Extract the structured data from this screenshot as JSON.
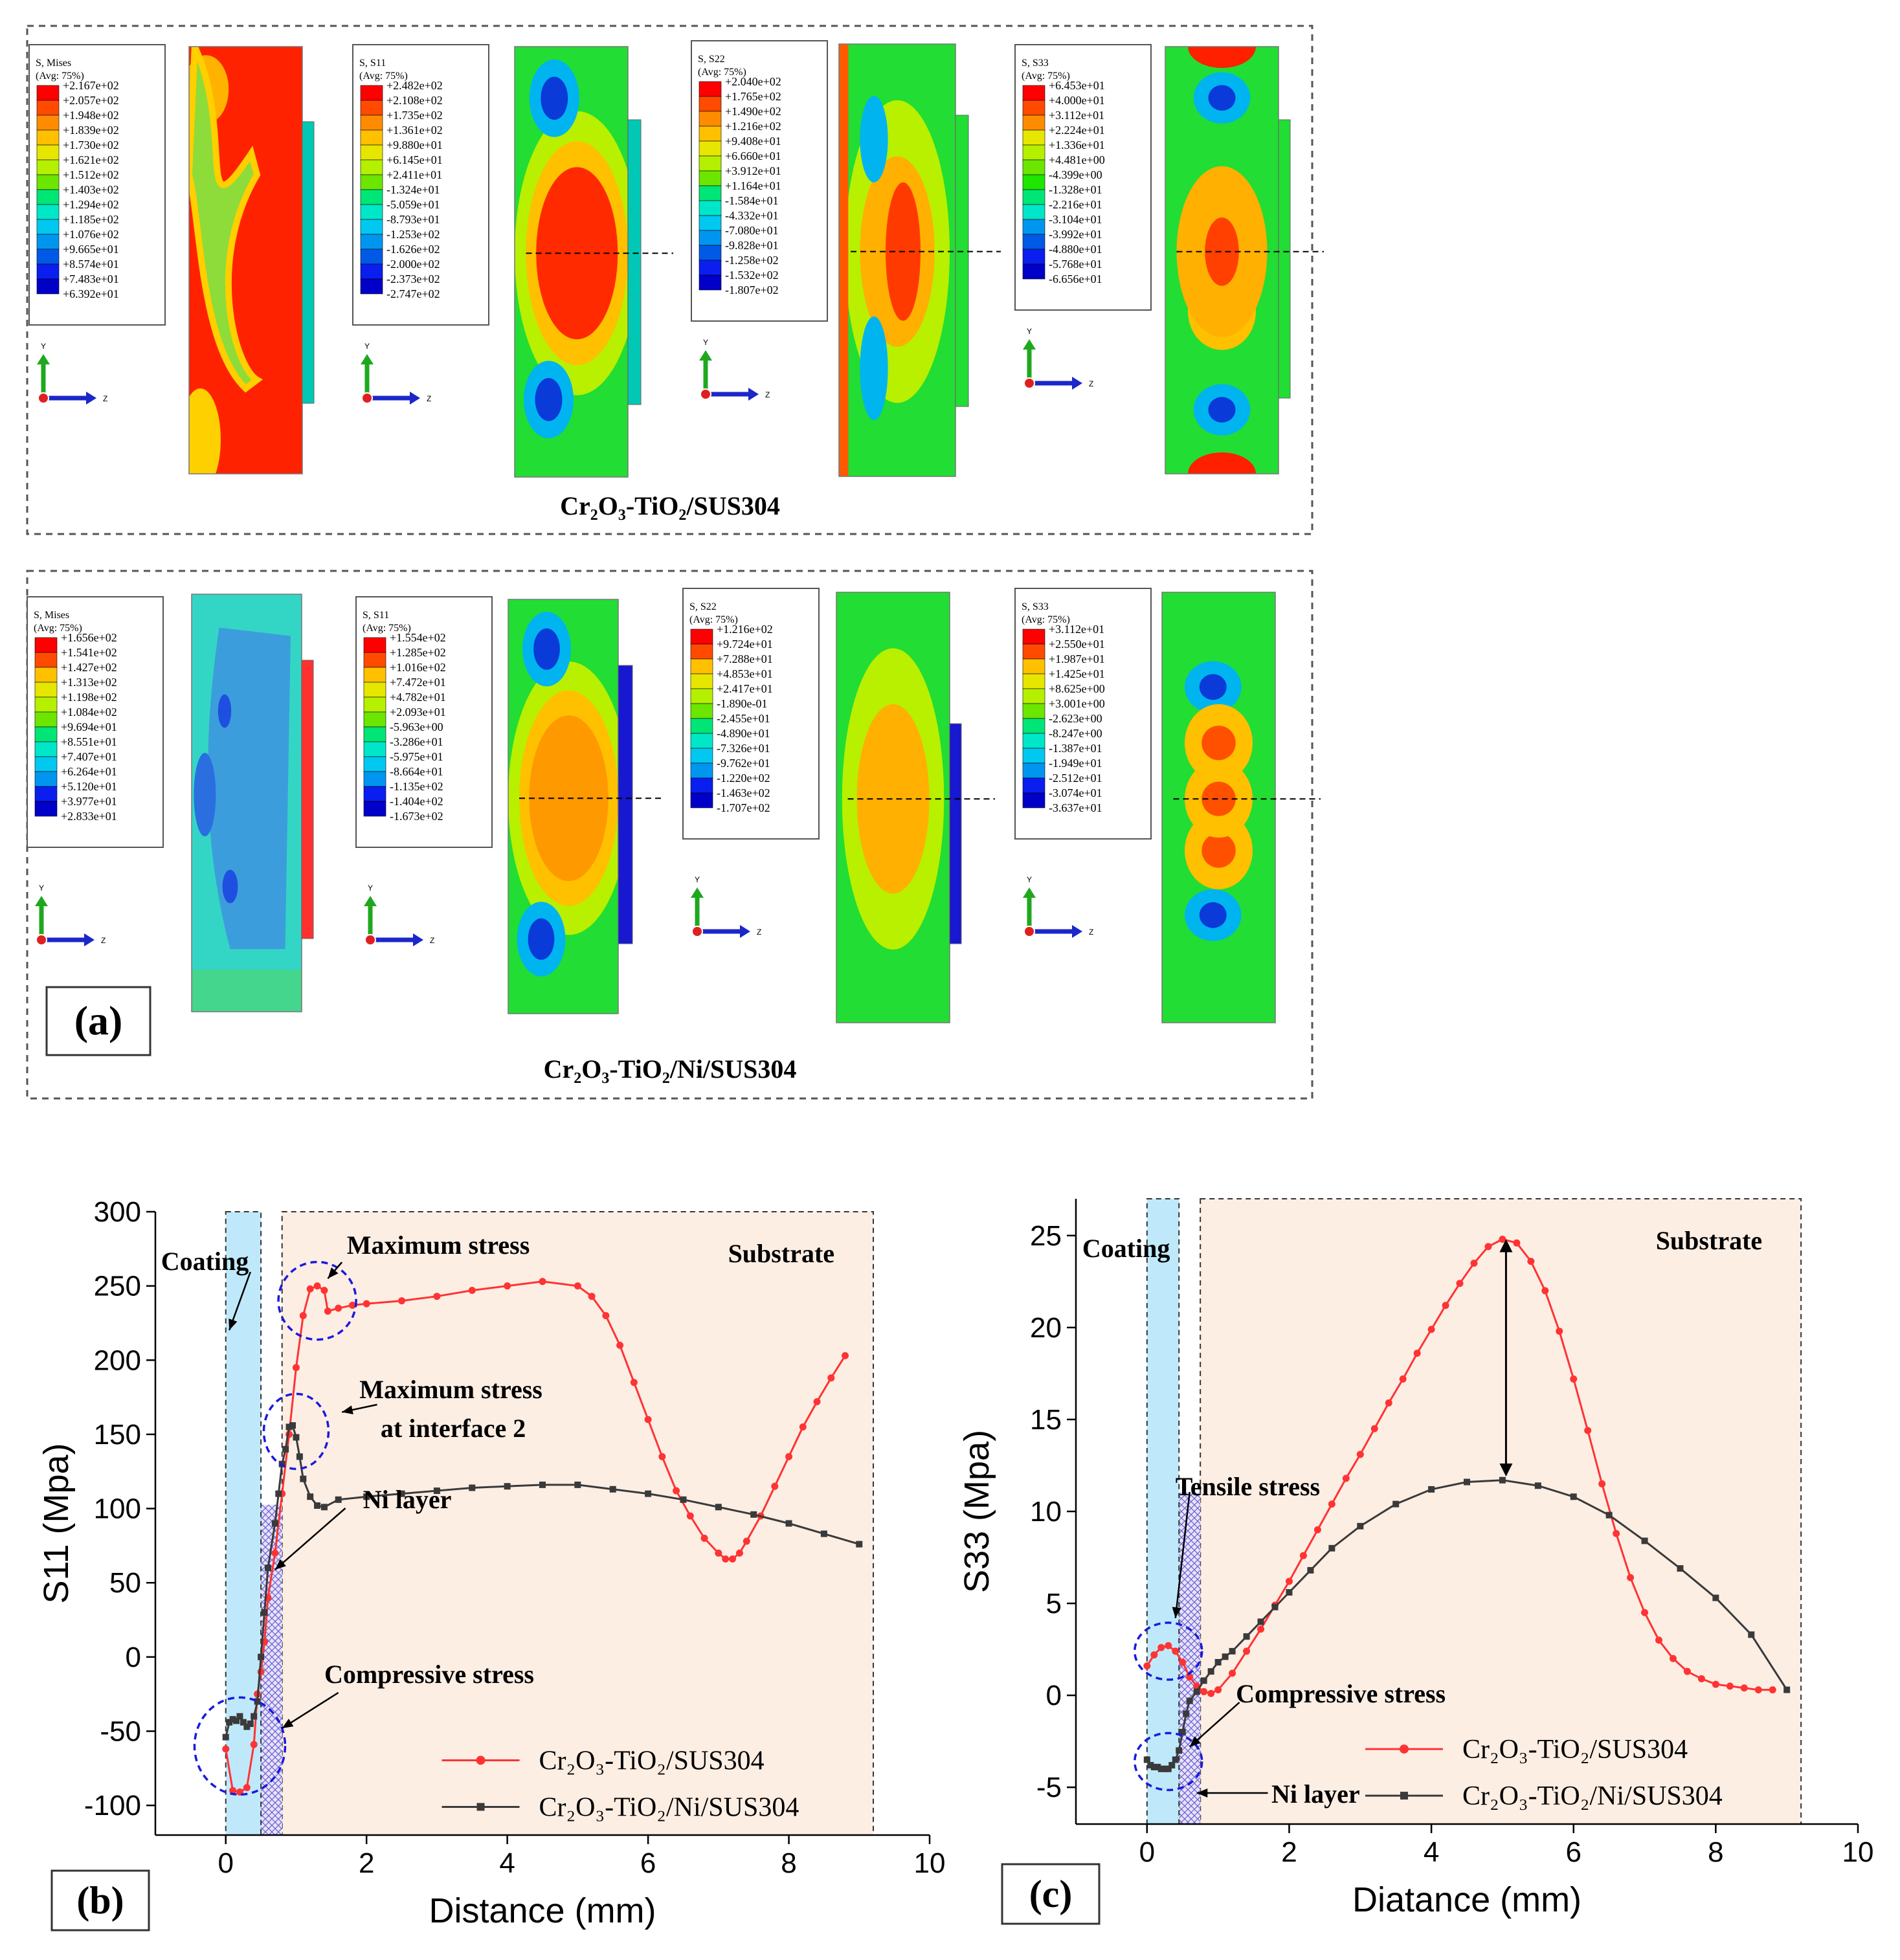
{
  "figure": {
    "panel_a": {
      "label": "(a)",
      "rows": [
        {
          "caption": "Cr₂O₃-TiO₂/SUS304",
          "plots": [
            {
              "title": "S, Mises",
              "avg": "(Avg: 75%)",
              "levels": [
                "+2.167e+02",
                "+2.057e+02",
                "+1.948e+02",
                "+1.839e+02",
                "+1.730e+02",
                "+1.621e+02",
                "+1.512e+02",
                "+1.403e+02",
                "+1.294e+02",
                "+1.185e+02",
                "+1.076e+02",
                "+9.665e+01",
                "+8.574e+01",
                "+7.483e+01",
                "+6.392e+01"
              ]
            },
            {
              "title": "S, S11",
              "avg": "(Avg: 75%)",
              "levels": [
                "+2.482e+02",
                "+2.108e+02",
                "+1.735e+02",
                "+1.361e+02",
                "+9.880e+01",
                "+6.145e+01",
                "+2.411e+01",
                "-1.324e+01",
                "-5.059e+01",
                "-8.793e+01",
                "-1.253e+02",
                "-1.626e+02",
                "-2.000e+02",
                "-2.373e+02",
                "-2.747e+02"
              ]
            },
            {
              "title": "S, S22",
              "avg": "(Avg: 75%)",
              "levels": [
                "+2.040e+02",
                "+1.765e+02",
                "+1.490e+02",
                "+1.216e+02",
                "+9.408e+01",
                "+6.660e+01",
                "+3.912e+01",
                "+1.164e+01",
                "-1.584e+01",
                "-4.332e+01",
                "-7.080e+01",
                "-9.828e+01",
                "-1.258e+02",
                "-1.532e+02",
                "-1.807e+02"
              ]
            },
            {
              "title": "S, S33",
              "avg": "(Avg: 75%)",
              "levels": [
                "+6.453e+01",
                "+4.000e+01",
                "+3.112e+01",
                "+2.224e+01",
                "+1.336e+01",
                "+4.481e+00",
                "-4.399e+00",
                "-1.328e+01",
                "-2.216e+01",
                "-3.104e+01",
                "-3.992e+01",
                "-4.880e+01",
                "-5.768e+01",
                "-6.656e+01"
              ]
            }
          ]
        },
        {
          "caption": "Cr₂O₃-TiO₂/Ni/SUS304",
          "plots": [
            {
              "title": "S, Mises",
              "avg": "(Avg: 75%)",
              "levels": [
                "+1.656e+02",
                "+1.541e+02",
                "+1.427e+02",
                "+1.313e+02",
                "+1.198e+02",
                "+1.084e+02",
                "+9.694e+01",
                "+8.551e+01",
                "+7.407e+01",
                "+6.264e+01",
                "+5.120e+01",
                "+3.977e+01",
                "+2.833e+01"
              ]
            },
            {
              "title": "S, S11",
              "avg": "(Avg: 75%)",
              "levels": [
                "+1.554e+02",
                "+1.285e+02",
                "+1.016e+02",
                "+7.472e+01",
                "+4.782e+01",
                "+2.093e+01",
                "-5.963e+00",
                "-3.286e+01",
                "-5.975e+01",
                "-8.664e+01",
                "-1.135e+02",
                "-1.404e+02",
                "-1.673e+02"
              ]
            },
            {
              "title": "S, S22",
              "avg": "(Avg: 75%)",
              "levels": [
                "+1.216e+02",
                "+9.724e+01",
                "+7.288e+01",
                "+4.853e+01",
                "+2.417e+01",
                "-1.890e-01",
                "-2.455e+01",
                "-4.890e+01",
                "-7.326e+01",
                "-9.762e+01",
                "-1.220e+02",
                "-1.463e+02",
                "-1.707e+02"
              ]
            },
            {
              "title": "S, S33",
              "avg": "(Avg: 75%)",
              "levels": [
                "+3.112e+01",
                "+2.550e+01",
                "+1.987e+01",
                "+1.425e+01",
                "+8.625e+00",
                "+3.001e+00",
                "-2.623e+00",
                "-8.247e+00",
                "-1.387e+01",
                "-1.949e+01",
                "-2.512e+01",
                "-3.074e+01",
                "-3.637e+01"
              ]
            }
          ]
        }
      ],
      "axis_y": "Y",
      "axis_z": "Z"
    },
    "colors": {
      "red": "#ff3333",
      "black": "#3a3a3a",
      "substrate_fill": "#fdeee4",
      "coating_fill": "#bfe9fb",
      "annotation": "#1a1adf"
    }
  },
  "chart_data": [
    {
      "id": "b",
      "type": "line",
      "panel_label": "(b)",
      "xlabel": "Distance (mm)",
      "ylabel": "S11 (Mpa)",
      "xlim": [
        -1,
        10
      ],
      "ylim": [
        -120,
        300
      ],
      "xticks": [
        0,
        2,
        4,
        6,
        8,
        10
      ],
      "yticks": [
        -100,
        -50,
        0,
        50,
        100,
        150,
        200,
        250,
        300
      ],
      "regions": {
        "coating": [
          0,
          0.5
        ],
        "ni_layer": [
          0.5,
          0.8
        ],
        "substrate_end": 9.2
      },
      "region_labels": {
        "coating": "Coating",
        "substrate": "Substrate"
      },
      "annotations": [
        "Maximum stress",
        "Maximum stress",
        "at interface 2",
        "Ni layer",
        "Compressive stress"
      ],
      "series": [
        {
          "name": "Cr₂O₃-TiO₂/SUS304",
          "color": "#ff3333",
          "marker": "circle",
          "points": [
            [
              0,
              -62
            ],
            [
              0.1,
              -90
            ],
            [
              0.2,
              -91
            ],
            [
              0.3,
              -88
            ],
            [
              0.4,
              -59
            ],
            [
              0.45,
              -25
            ],
            [
              0.5,
              -10
            ],
            [
              0.55,
              10
            ],
            [
              0.6,
              40
            ],
            [
              0.7,
              70
            ],
            [
              0.8,
              110
            ],
            [
              0.9,
              150
            ],
            [
              1.0,
              195
            ],
            [
              1.1,
              230
            ],
            [
              1.2,
              248
            ],
            [
              1.3,
              250
            ],
            [
              1.4,
              247
            ],
            [
              1.45,
              233
            ],
            [
              1.6,
              235
            ],
            [
              1.8,
              237
            ],
            [
              2.0,
              238
            ],
            [
              2.5,
              240
            ],
            [
              3.0,
              243
            ],
            [
              3.5,
              247
            ],
            [
              4.0,
              250
            ],
            [
              4.5,
              253
            ],
            [
              5.0,
              250
            ],
            [
              5.2,
              243
            ],
            [
              5.4,
              230
            ],
            [
              5.6,
              210
            ],
            [
              5.8,
              185
            ],
            [
              6.0,
              160
            ],
            [
              6.2,
              135
            ],
            [
              6.4,
              112
            ],
            [
              6.6,
              95
            ],
            [
              6.8,
              80
            ],
            [
              7.0,
              70
            ],
            [
              7.1,
              66
            ],
            [
              7.2,
              66
            ],
            [
              7.3,
              70
            ],
            [
              7.4,
              78
            ],
            [
              7.6,
              95
            ],
            [
              7.8,
              115
            ],
            [
              8.0,
              135
            ],
            [
              8.2,
              155
            ],
            [
              8.4,
              172
            ],
            [
              8.6,
              188
            ],
            [
              8.8,
              203
            ]
          ]
        },
        {
          "name": "Cr₂O₃-TiO₂/Ni/SUS304",
          "color": "#3a3a3a",
          "marker": "square",
          "points": [
            [
              0,
              -54
            ],
            [
              0.05,
              -44
            ],
            [
              0.1,
              -42
            ],
            [
              0.15,
              -43
            ],
            [
              0.2,
              -40
            ],
            [
              0.25,
              -44
            ],
            [
              0.3,
              -47
            ],
            [
              0.35,
              -45
            ],
            [
              0.4,
              -40
            ],
            [
              0.45,
              -30
            ],
            [
              0.5,
              0
            ],
            [
              0.55,
              30
            ],
            [
              0.6,
              60
            ],
            [
              0.7,
              90
            ],
            [
              0.75,
              110
            ],
            [
              0.8,
              130
            ],
            [
              0.85,
              140
            ],
            [
              0.9,
              155
            ],
            [
              0.95,
              156
            ],
            [
              1.0,
              148
            ],
            [
              1.05,
              135
            ],
            [
              1.1,
              120
            ],
            [
              1.2,
              108
            ],
            [
              1.3,
              102
            ],
            [
              1.4,
              101
            ],
            [
              1.6,
              106
            ],
            [
              2.0,
              108
            ],
            [
              2.5,
              110
            ],
            [
              3.0,
              112
            ],
            [
              3.5,
              114
            ],
            [
              4.0,
              115
            ],
            [
              4.5,
              116
            ],
            [
              5.0,
              116
            ],
            [
              5.5,
              113
            ],
            [
              6.0,
              110
            ],
            [
              6.5,
              106
            ],
            [
              7.0,
              101
            ],
            [
              7.5,
              96
            ],
            [
              8.0,
              90
            ],
            [
              8.5,
              83
            ],
            [
              9.0,
              76
            ]
          ]
        }
      ]
    },
    {
      "id": "c",
      "type": "line",
      "panel_label": "(c)",
      "xlabel": "Diatance (mm)",
      "ylabel": "S33 (Mpa)",
      "xlim": [
        -1,
        10
      ],
      "ylim": [
        -7,
        27
      ],
      "xticks": [
        0,
        2,
        4,
        6,
        8,
        10
      ],
      "yticks": [
        -5,
        0,
        5,
        10,
        15,
        20,
        25
      ],
      "regions": {
        "coating": [
          0,
          0.45
        ],
        "ni_layer": [
          0.45,
          0.75
        ],
        "substrate_end": 9.2
      },
      "region_labels": {
        "coating": "Coating",
        "substrate": "Substrate"
      },
      "annotations": [
        "Tensile stress",
        "Compressive stress",
        "Ni layer"
      ],
      "series": [
        {
          "name": "Cr₂O₃-TiO₂/SUS304",
          "color": "#ff3333",
          "marker": "circle",
          "points": [
            [
              0,
              1.6
            ],
            [
              0.1,
              2.2
            ],
            [
              0.2,
              2.6
            ],
            [
              0.3,
              2.7
            ],
            [
              0.4,
              2.4
            ],
            [
              0.5,
              1.8
            ],
            [
              0.6,
              1.0
            ],
            [
              0.7,
              0.5
            ],
            [
              0.8,
              0.2
            ],
            [
              0.9,
              0.1
            ],
            [
              1.0,
              0.3
            ],
            [
              1.2,
              1.2
            ],
            [
              1.4,
              2.4
            ],
            [
              1.6,
              3.6
            ],
            [
              1.8,
              4.9
            ],
            [
              2.0,
              6.2
            ],
            [
              2.2,
              7.6
            ],
            [
              2.4,
              9.0
            ],
            [
              2.6,
              10.4
            ],
            [
              2.8,
              11.8
            ],
            [
              3.0,
              13.1
            ],
            [
              3.2,
              14.5
            ],
            [
              3.4,
              15.9
            ],
            [
              3.6,
              17.2
            ],
            [
              3.8,
              18.6
            ],
            [
              4.0,
              19.9
            ],
            [
              4.2,
              21.2
            ],
            [
              4.4,
              22.4
            ],
            [
              4.6,
              23.5
            ],
            [
              4.8,
              24.4
            ],
            [
              5.0,
              24.8
            ],
            [
              5.2,
              24.6
            ],
            [
              5.4,
              23.6
            ],
            [
              5.6,
              22.0
            ],
            [
              5.8,
              19.8
            ],
            [
              6.0,
              17.2
            ],
            [
              6.2,
              14.4
            ],
            [
              6.4,
              11.5
            ],
            [
              6.6,
              8.8
            ],
            [
              6.8,
              6.4
            ],
            [
              7.0,
              4.5
            ],
            [
              7.2,
              3.0
            ],
            [
              7.4,
              2.0
            ],
            [
              7.6,
              1.3
            ],
            [
              7.8,
              0.9
            ],
            [
              8.0,
              0.6
            ],
            [
              8.2,
              0.5
            ],
            [
              8.4,
              0.4
            ],
            [
              8.6,
              0.3
            ],
            [
              8.8,
              0.3
            ]
          ]
        },
        {
          "name": "Cr₂O₃-TiO₂/Ni/SUS304",
          "color": "#3a3a3a",
          "marker": "square",
          "points": [
            [
              0,
              -3.5
            ],
            [
              0.05,
              -3.8
            ],
            [
              0.1,
              -3.9
            ],
            [
              0.15,
              -3.9
            ],
            [
              0.2,
              -4.0
            ],
            [
              0.25,
              -4.0
            ],
            [
              0.3,
              -4.0
            ],
            [
              0.35,
              -3.8
            ],
            [
              0.4,
              -3.5
            ],
            [
              0.45,
              -3.0
            ],
            [
              0.5,
              -2.0
            ],
            [
              0.55,
              -1.0
            ],
            [
              0.6,
              -0.3
            ],
            [
              0.7,
              0.2
            ],
            [
              0.8,
              0.8
            ],
            [
              0.9,
              1.3
            ],
            [
              1.0,
              1.8
            ],
            [
              1.1,
              2.1
            ],
            [
              1.2,
              2.4
            ],
            [
              1.4,
              3.2
            ],
            [
              1.6,
              4.0
            ],
            [
              1.8,
              4.8
            ],
            [
              2.0,
              5.6
            ],
            [
              2.3,
              6.8
            ],
            [
              2.6,
              8.0
            ],
            [
              3.0,
              9.2
            ],
            [
              3.5,
              10.4
            ],
            [
              4.0,
              11.2
            ],
            [
              4.5,
              11.6
            ],
            [
              5.0,
              11.7
            ],
            [
              5.5,
              11.4
            ],
            [
              6.0,
              10.8
            ],
            [
              6.5,
              9.8
            ],
            [
              7.0,
              8.4
            ],
            [
              7.5,
              6.9
            ],
            [
              8.0,
              5.3
            ],
            [
              8.5,
              3.3
            ],
            [
              9.0,
              0.3
            ]
          ]
        }
      ]
    }
  ]
}
